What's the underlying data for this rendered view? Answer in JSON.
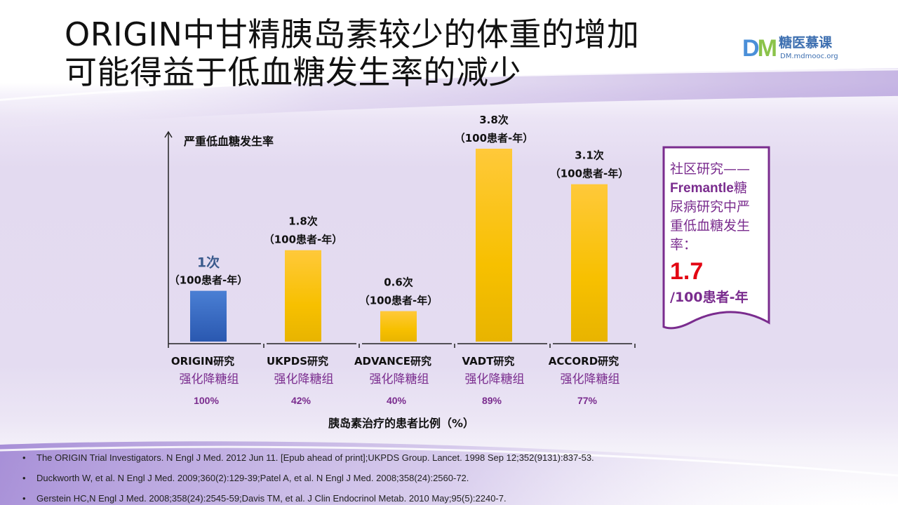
{
  "title": {
    "line1": "ORIGIN中甘精胰岛素较少的体重的增加",
    "line2": "可能得益于低血糖发生率的减少"
  },
  "logo": {
    "mark_d": "D",
    "mark_m": "M",
    "name": "糖医慕课",
    "url": "DM.mdmooc.org"
  },
  "colors": {
    "origin_bar": "#3568c2",
    "other_bar": "#f5c200",
    "purple": "#7a2c8e",
    "red": "#e30613"
  },
  "chart_data": {
    "type": "bar",
    "ylabel": "严重低血糖发生率",
    "xlabel": "胰岛素治疗的患者比例（%）",
    "ylim": [
      0,
      4.6
    ],
    "categories": [
      "ORIGIN研究",
      "UKPDS研究",
      "ADVANCE研究",
      "VADT研究",
      "ACCORD研究"
    ],
    "subcategory": "强化降糖组",
    "values": [
      1,
      1.8,
      0.6,
      3.8,
      3.1
    ],
    "value_labels": [
      "1次",
      "1.8次",
      "0.6次",
      "3.8次",
      "3.1次"
    ],
    "unit_label": "（100患者-年）",
    "insulin_percent": [
      "100%",
      "42%",
      "40%",
      "89%",
      "77%"
    ],
    "bar_colors": [
      "#3568c2",
      "#f5c200",
      "#f5c200",
      "#f5c200",
      "#f5c200"
    ]
  },
  "callout": {
    "line1": "社区研究——",
    "fremantle": "Fremantle",
    "line2a": "糖",
    "line3": "尿病研究中严",
    "line4": "重低血糖发生",
    "line5": "率：",
    "value": "1.7",
    "unit": "/100患者-年"
  },
  "references": [
    "The ORIGIN Trial Investigators. N Engl J Med. 2012 Jun 11. [Epub ahead of print];UKPDS Group. Lancet. 1998 Sep 12;352(9131):837-53.",
    "Duckworth W, et al. N Engl J Med. 2009;360(2):129-39;Patel A, et al. N Engl J Med. 2008;358(24):2560-72.",
    "Gerstein HC,N Engl J Med. 2008;358(24):2545-59;Davis TM,  et al. J Clin Endocrinol Metab. 2010 May;95(5):2240-7."
  ]
}
